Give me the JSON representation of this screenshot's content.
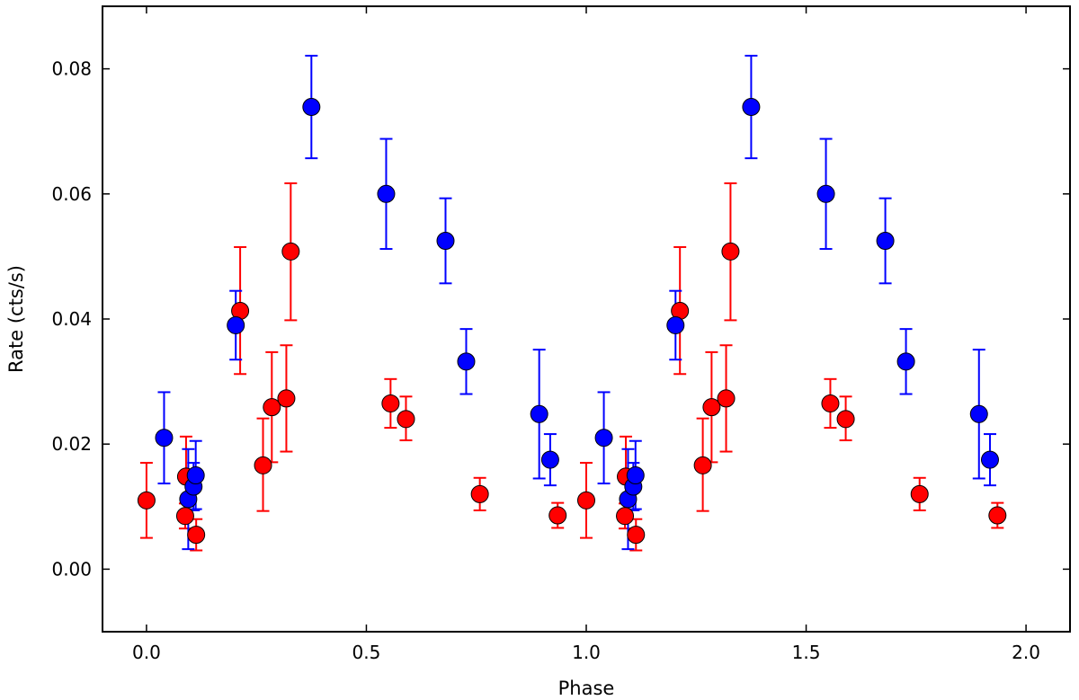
{
  "chart_data": {
    "type": "scatter",
    "xlabel": "Phase",
    "ylabel": "Rate (cts/s)",
    "xlim": [
      -0.1,
      2.1
    ],
    "ylim": [
      -0.01,
      0.09
    ],
    "xticks": [
      0.0,
      0.5,
      1.0,
      1.5,
      2.0
    ],
    "xtick_labels": [
      "0.0",
      "0.5",
      "1.0",
      "1.5",
      "2.0"
    ],
    "yticks": [
      0.0,
      0.02,
      0.04,
      0.06,
      0.08
    ],
    "ytick_labels": [
      "0.00",
      "0.02",
      "0.04",
      "0.06",
      "0.08"
    ],
    "grid": false,
    "legend": "none",
    "series": [
      {
        "color": "#ff0000",
        "points": [
          {
            "x": 0.0,
            "y": 0.011,
            "lo": 0.005,
            "hi": 0.017
          },
          {
            "x": 0.088,
            "y": 0.0085,
            "lo": 0.0065,
            "hi": 0.0105
          },
          {
            "x": 0.09,
            "y": 0.0148,
            "lo": 0.0085,
            "hi": 0.0212
          },
          {
            "x": 0.113,
            "y": 0.0055,
            "lo": 0.003,
            "hi": 0.008
          },
          {
            "x": 0.213,
            "y": 0.0413,
            "lo": 0.0312,
            "hi": 0.0515
          },
          {
            "x": 0.265,
            "y": 0.0166,
            "lo": 0.0093,
            "hi": 0.0241
          },
          {
            "x": 0.285,
            "y": 0.0259,
            "lo": 0.0171,
            "hi": 0.0347
          },
          {
            "x": 0.318,
            "y": 0.0273,
            "lo": 0.0188,
            "hi": 0.0358
          },
          {
            "x": 0.328,
            "y": 0.0508,
            "lo": 0.0398,
            "hi": 0.0617
          },
          {
            "x": 0.555,
            "y": 0.0265,
            "lo": 0.0226,
            "hi": 0.0304
          },
          {
            "x": 0.59,
            "y": 0.024,
            "lo": 0.0206,
            "hi": 0.0276
          },
          {
            "x": 0.758,
            "y": 0.012,
            "lo": 0.0094,
            "hi": 0.0146
          },
          {
            "x": 0.935,
            "y": 0.0086,
            "lo": 0.0066,
            "hi": 0.0106
          },
          {
            "x": 1.0,
            "y": 0.011,
            "lo": 0.005,
            "hi": 0.017
          },
          {
            "x": 1.088,
            "y": 0.0085,
            "lo": 0.0065,
            "hi": 0.0105
          },
          {
            "x": 1.09,
            "y": 0.0148,
            "lo": 0.0085,
            "hi": 0.0212
          },
          {
            "x": 1.113,
            "y": 0.0055,
            "lo": 0.003,
            "hi": 0.008
          },
          {
            "x": 1.213,
            "y": 0.0413,
            "lo": 0.0312,
            "hi": 0.0515
          },
          {
            "x": 1.265,
            "y": 0.0166,
            "lo": 0.0093,
            "hi": 0.0241
          },
          {
            "x": 1.285,
            "y": 0.0259,
            "lo": 0.0171,
            "hi": 0.0347
          },
          {
            "x": 1.318,
            "y": 0.0273,
            "lo": 0.0188,
            "hi": 0.0358
          },
          {
            "x": 1.328,
            "y": 0.0508,
            "lo": 0.0398,
            "hi": 0.0617
          },
          {
            "x": 1.555,
            "y": 0.0265,
            "lo": 0.0226,
            "hi": 0.0304
          },
          {
            "x": 1.59,
            "y": 0.024,
            "lo": 0.0206,
            "hi": 0.0276
          },
          {
            "x": 1.758,
            "y": 0.012,
            "lo": 0.0094,
            "hi": 0.0146
          },
          {
            "x": 1.935,
            "y": 0.0086,
            "lo": 0.0066,
            "hi": 0.0106
          }
        ]
      },
      {
        "color": "#0000ff",
        "points": [
          {
            "x": 0.04,
            "y": 0.021,
            "lo": 0.0137,
            "hi": 0.0283
          },
          {
            "x": 0.095,
            "y": 0.0112,
            "lo": 0.0032,
            "hi": 0.0192
          },
          {
            "x": 0.107,
            "y": 0.0132,
            "lo": 0.0094,
            "hi": 0.017
          },
          {
            "x": 0.112,
            "y": 0.015,
            "lo": 0.0096,
            "hi": 0.0205
          },
          {
            "x": 0.203,
            "y": 0.039,
            "lo": 0.0335,
            "hi": 0.0445
          },
          {
            "x": 0.375,
            "y": 0.0739,
            "lo": 0.0657,
            "hi": 0.0821
          },
          {
            "x": 0.545,
            "y": 0.06,
            "lo": 0.0512,
            "hi": 0.0688
          },
          {
            "x": 0.68,
            "y": 0.0525,
            "lo": 0.0457,
            "hi": 0.0593
          },
          {
            "x": 0.727,
            "y": 0.0332,
            "lo": 0.028,
            "hi": 0.0384
          },
          {
            "x": 0.893,
            "y": 0.0248,
            "lo": 0.0145,
            "hi": 0.0351
          },
          {
            "x": 0.918,
            "y": 0.0175,
            "lo": 0.0134,
            "hi": 0.0216
          },
          {
            "x": 1.04,
            "y": 0.021,
            "lo": 0.0137,
            "hi": 0.0283
          },
          {
            "x": 1.095,
            "y": 0.0112,
            "lo": 0.0032,
            "hi": 0.0192
          },
          {
            "x": 1.107,
            "y": 0.0132,
            "lo": 0.0094,
            "hi": 0.017
          },
          {
            "x": 1.112,
            "y": 0.015,
            "lo": 0.0096,
            "hi": 0.0205
          },
          {
            "x": 1.203,
            "y": 0.039,
            "lo": 0.0335,
            "hi": 0.0445
          },
          {
            "x": 1.375,
            "y": 0.0739,
            "lo": 0.0657,
            "hi": 0.0821
          },
          {
            "x": 1.545,
            "y": 0.06,
            "lo": 0.0512,
            "hi": 0.0688
          },
          {
            "x": 1.68,
            "y": 0.0525,
            "lo": 0.0457,
            "hi": 0.0593
          },
          {
            "x": 1.727,
            "y": 0.0332,
            "lo": 0.028,
            "hi": 0.0384
          },
          {
            "x": 1.893,
            "y": 0.0248,
            "lo": 0.0145,
            "hi": 0.0351
          },
          {
            "x": 1.918,
            "y": 0.0175,
            "lo": 0.0134,
            "hi": 0.0216
          }
        ]
      }
    ]
  }
}
